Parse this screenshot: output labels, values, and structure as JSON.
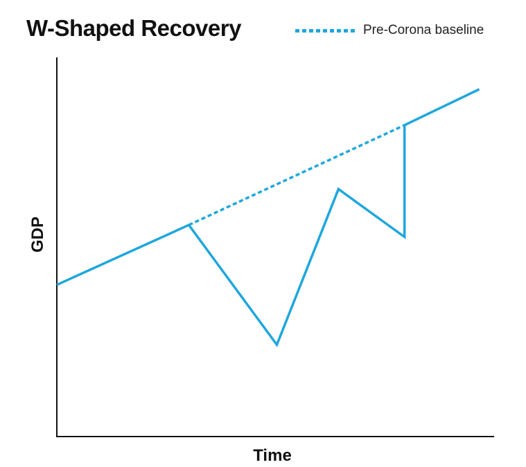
{
  "chart_data": {
    "type": "line",
    "title": "W-Shaped Recovery",
    "xlabel": "Time",
    "ylabel": "GDP",
    "xlim": [
      0,
      100
    ],
    "ylim": [
      0,
      100
    ],
    "grid": false,
    "legend_placement": "top-right",
    "legend": [
      {
        "label": "Pre-Corona baseline",
        "style": "dotted"
      }
    ],
    "series": [
      {
        "style": "solid",
        "x": [
          0,
          30,
          50,
          64,
          79,
          79,
          96
        ],
        "y": [
          38,
          53,
          23,
          62,
          50,
          78,
          87
        ]
      },
      {
        "name": "Pre-Corona baseline",
        "style": "dotted",
        "x": [
          30,
          79
        ],
        "y": [
          53,
          78
        ]
      }
    ],
    "colors": {
      "line": "#1ea7dc",
      "axis": "#111111",
      "text": "#111111"
    }
  }
}
